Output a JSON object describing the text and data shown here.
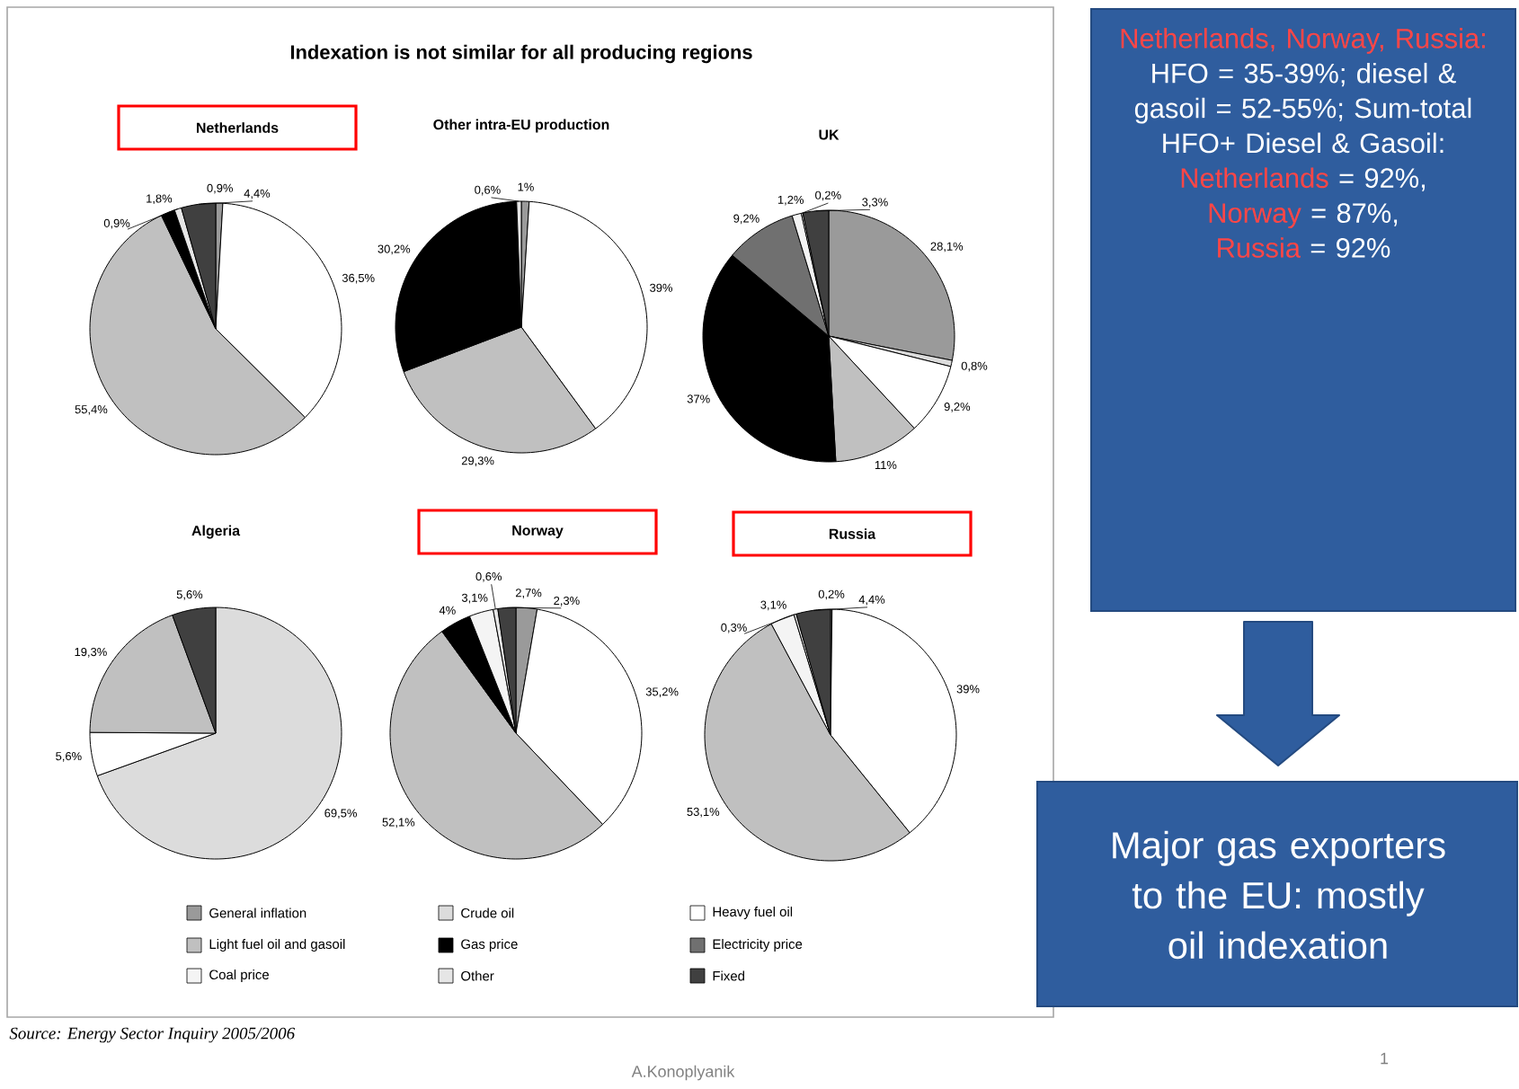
{
  "chart_data": [
    {
      "type": "pie",
      "title": "Netherlands",
      "legend": "bottom",
      "categories": [
        "General inflation",
        "Crude oil",
        "Heavy fuel oil",
        "Light fuel oil and gasoil",
        "Gas price",
        "Electricity price",
        "Coal price",
        "Other",
        "Fixed"
      ],
      "colors": [
        "#9a9a9a",
        "#dcdcdc",
        "#ffffff",
        "#c0c0c0",
        "#000000",
        "#707070",
        "#f4f4f4",
        "#e6e6e6",
        "#404040"
      ],
      "values": [
        0.9,
        null,
        36.5,
        55.4,
        1.8,
        null,
        null,
        0.9,
        4.4
      ],
      "value_labels": [
        "0,9%",
        null,
        "36,5%",
        "55,4%",
        "1,8%",
        null,
        null,
        "0,9%",
        "4,4%"
      ]
    },
    {
      "type": "pie",
      "title": "Other intra-EU production",
      "categories": [
        null,
        null,
        null,
        null,
        null,
        null,
        null,
        null,
        null
      ],
      "colors": [
        "#9a9a9a",
        "#dcdcdc",
        "#ffffff",
        "#c0c0c0",
        "#000000",
        "#707070",
        "#f4f4f4",
        "#e6e6e6",
        "#404040"
      ],
      "values": [
        1,
        null,
        39,
        29.3,
        30.2,
        null,
        null,
        0.6,
        null
      ],
      "value_labels": [
        "1%",
        null,
        "39%",
        "29,3%",
        "30,2%",
        null,
        null,
        "0,6%",
        null
      ]
    },
    {
      "type": "pie",
      "title": "UK",
      "categories": [
        null,
        null,
        null,
        null,
        null,
        null,
        null,
        null,
        null
      ],
      "colors": [
        "#9a9a9a",
        "#dcdcdc",
        "#ffffff",
        "#c0c0c0",
        "#000000",
        "#707070",
        "#f4f4f4",
        "#e6e6e6",
        "#404040"
      ],
      "values": [
        28.1,
        0.8,
        9.2,
        11,
        37,
        9.2,
        1.2,
        0.2,
        3.3
      ],
      "value_labels": [
        "28,1%",
        "0,8%",
        "9,2%",
        "11%",
        "37%",
        "9,2%",
        "1,2%",
        "0,2%",
        "3,3%"
      ]
    },
    {
      "type": "pie",
      "title": "Algeria",
      "categories": [
        null,
        null,
        null,
        null,
        null,
        null,
        null,
        null,
        null
      ],
      "colors": [
        "#9a9a9a",
        "#dcdcdc",
        "#ffffff",
        "#c0c0c0",
        "#000000",
        "#707070",
        "#f4f4f4",
        "#e6e6e6",
        "#404040"
      ],
      "values": [
        null,
        69.5,
        5.6,
        19.3,
        null,
        null,
        null,
        null,
        5.6
      ],
      "value_labels": [
        null,
        "69,5%",
        "5,6%",
        "19,3%",
        null,
        null,
        null,
        null,
        "5,6%"
      ]
    },
    {
      "type": "pie",
      "title": "Norway",
      "categories": [
        null,
        null,
        null,
        null,
        null,
        null,
        null,
        null,
        null
      ],
      "colors": [
        "#9a9a9a",
        "#dcdcdc",
        "#ffffff",
        "#c0c0c0",
        "#000000",
        "#707070",
        "#f4f4f4",
        "#e6e6e6",
        "#404040"
      ],
      "values": [
        2.7,
        null,
        35.2,
        52.1,
        4,
        null,
        3.1,
        0.6,
        2.3
      ],
      "value_labels": [
        "2,7%",
        null,
        "35,2%",
        "52,1%",
        "4%",
        null,
        "3,1%",
        "0,6%",
        "2,3%"
      ]
    },
    {
      "type": "pie",
      "title": "Russia",
      "categories": [
        null,
        null,
        null,
        null,
        null,
        null,
        null,
        null,
        null
      ],
      "colors": [
        "#9a9a9a",
        "#dcdcdc",
        "#ffffff",
        "#c0c0c0",
        "#000000",
        "#707070",
        "#f4f4f4",
        "#e6e6e6",
        "#404040"
      ],
      "values": [
        0.2,
        null,
        39,
        53.1,
        null,
        null,
        3.1,
        0.3,
        4.4
      ],
      "value_labels": [
        "0,2%",
        null,
        "39%",
        "53,1%",
        null,
        null,
        "3,1%",
        "0,3%",
        "4,4%"
      ]
    },
    {
      "type": "other",
      "title": "Indexation is not similar for all producing regions",
      "annotations": [
        "Netherlands, Norway, Russia:",
        "HFO = 35-39%; diesel & gasoil = 52-55%; Sum-total HFO+ Diesel & Gasoil:",
        "Netherlands",
        " = 92%,",
        "Norway",
        " = 87%,",
        "Russia",
        " = 92%",
        "Major gas exporters to the EU: mostly oil indexation",
        "Source: Energy Sector Inquiry 2005/2006",
        "A.Konoplyanik",
        "1"
      ]
    }
  ]
}
